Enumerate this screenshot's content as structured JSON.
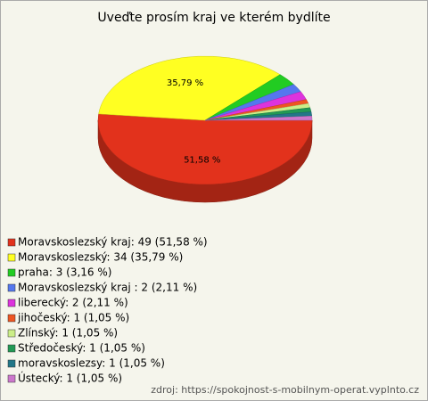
{
  "chart_data": {
    "type": "pie3d",
    "title": "Uveďte prosím kraj ve kterém bydlíte",
    "legend": [
      "Moravskoslezský kraj: 49 (51,58 %)",
      "Moravskoslezský: 34 (35,79 %)",
      "praha: 3 (3,16 %)",
      " Moravskoslezský kraj : 2 (2,11 %)",
      "liberecký: 2 (2,11 %)",
      "jihočeský: 1 (1,05 %)",
      "Zlínský: 1 (1,05 %)",
      "Středočeský: 1 (1,05 %)",
      "moravskoslezsy: 1 (1,05 %)",
      "Ústecký: 1 (1,05 %)"
    ],
    "values": [
      49,
      34,
      3,
      2,
      2,
      1,
      1,
      1,
      1,
      1
    ],
    "value_labels": [
      "51,58 %",
      "35,79 %",
      null,
      null,
      null,
      null,
      null,
      null,
      null,
      null
    ],
    "colors": [
      "#e2321c",
      "#ffff22",
      "#22cc22",
      "#5577ee",
      "#dd33dd",
      "#ee5522",
      "#ccee88",
      "#229955",
      "#227788",
      "#cc77cc"
    ],
    "source": "zdroj: https://spokojnost-s-mobilnym-operat.vyplnto.cz"
  }
}
